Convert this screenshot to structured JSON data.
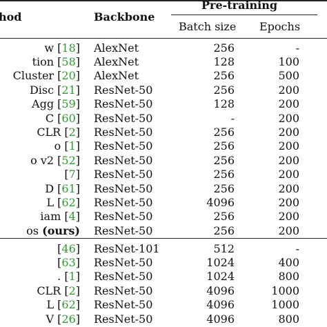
{
  "header": {
    "method": "hod",
    "backbone": "Backbone",
    "group": "Pre-training",
    "batch": "Batch size",
    "epochs": "Epochs"
  },
  "groups": [
    {
      "rows": [
        {
          "pre": "w [",
          "cite": "18",
          "post": "]",
          "bb": "AlexNet",
          "batch": "256",
          "epochs": "-"
        },
        {
          "pre": "tion [",
          "cite": "58",
          "post": "]",
          "bb": "AlexNet",
          "batch": "128",
          "epochs": "100"
        },
        {
          "pre": "Cluster [",
          "cite": "20",
          "post": "]",
          "bb": "AlexNet",
          "batch": "256",
          "epochs": "500"
        },
        {
          "pre": "Disc [",
          "cite": "21",
          "post": "]",
          "bb": "ResNet-50",
          "batch": "256",
          "epochs": "200"
        },
        {
          "pre": "Agg [",
          "cite": "59",
          "post": "]",
          "bb": "ResNet-50",
          "batch": "128",
          "epochs": "200"
        },
        {
          "pre": "C [",
          "cite": "60",
          "post": "]",
          "bb": "ResNet-50",
          "batch": "-",
          "epochs": "200"
        },
        {
          "pre": "CLR [",
          "cite": "2",
          "post": "]",
          "bb": "ResNet-50",
          "batch": "256",
          "epochs": "200"
        },
        {
          "pre": "o [",
          "cite": "1",
          "post": "]",
          "bb": "ResNet-50",
          "batch": "256",
          "epochs": "200"
        },
        {
          "pre": "o v2 [",
          "cite": "52",
          "post": "]",
          "bb": "ResNet-50",
          "batch": "256",
          "epochs": "200"
        },
        {
          "pre": "[",
          "cite": "7",
          "post": "]",
          "bb": "ResNet-50",
          "batch": "256",
          "epochs": "200"
        },
        {
          "pre": "D [",
          "cite": "61",
          "post": "]",
          "bb": "ResNet-50",
          "batch": "256",
          "epochs": "200"
        },
        {
          "pre": "L [",
          "cite": "62",
          "post": "]",
          "bb": "ResNet-50",
          "batch": "4096",
          "epochs": "200"
        },
        {
          "pre": "iam [",
          "cite": "4",
          "post": "]",
          "bb": "ResNet-50",
          "batch": "256",
          "epochs": "200"
        },
        {
          "pre": "os (",
          "cite": "",
          "post": "ours)",
          "bb": "ResNet-50",
          "batch": "256",
          "epochs": "200",
          "bold_post": true
        }
      ]
    },
    {
      "rows": [
        {
          "pre": "[",
          "cite": "46",
          "post": "]",
          "bb": "ResNet-101",
          "batch": "512",
          "epochs": "-"
        },
        {
          "pre": "[",
          "cite": "63",
          "post": "]",
          "bb": "ResNet-50",
          "batch": "1024",
          "epochs": "400"
        },
        {
          "pre": ". [",
          "cite": "1",
          "post": "]",
          "bb": "ResNet-50",
          "batch": "1024",
          "epochs": "800"
        },
        {
          "pre": "CLR [",
          "cite": "2",
          "post": "]",
          "bb": "ResNet-50",
          "batch": "4096",
          "epochs": "1000"
        },
        {
          "pre": "L [",
          "cite": "62",
          "post": "]",
          "bb": "ResNet-50",
          "batch": "4096",
          "epochs": "1000"
        },
        {
          "pre": "V [",
          "cite": "26",
          "post": "]",
          "bb": "ResNet-50",
          "batch": "4096",
          "epochs": "800"
        }
      ]
    }
  ]
}
